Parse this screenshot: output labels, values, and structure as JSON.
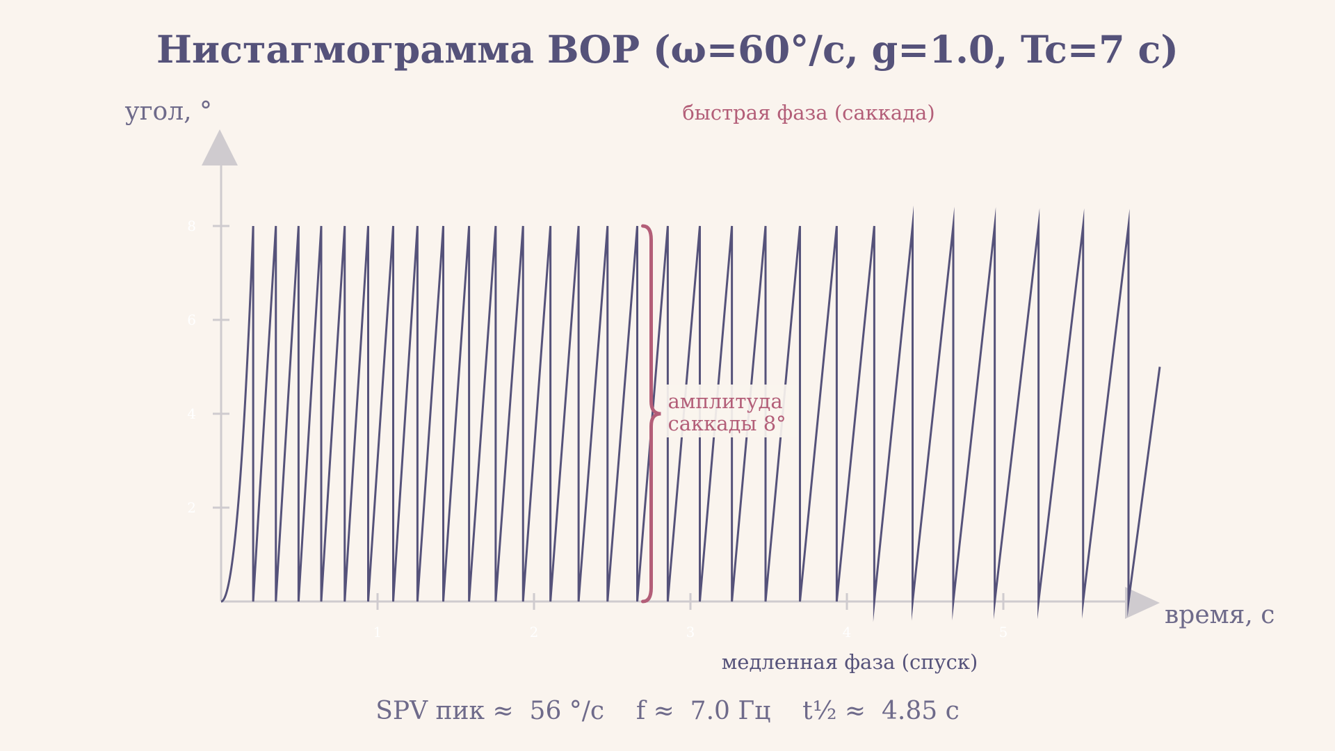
{
  "chart_data": {
    "type": "line",
    "title": "Нистагмограмма ВОР (ω=60°/с, g=1.0, Tc=7 с)",
    "xlabel": "время, с",
    "ylabel": "угол, °",
    "xlim": [
      0,
      5.9
    ],
    "ylim": [
      0,
      10
    ],
    "x_ticks": [
      1,
      2,
      3,
      4,
      5
    ],
    "y_ticks": [
      2,
      4,
      6,
      8
    ],
    "x_tick_labels": [
      "1",
      "2",
      "3",
      "4",
      "5"
    ],
    "y_tick_labels": [
      "2",
      "4",
      "6",
      "8"
    ],
    "grid": false,
    "series": [
      {
        "color": "#55527a",
        "x": [
          0,
          0.205,
          0.205,
          0.35,
          0.35,
          0.495,
          0.495,
          0.64,
          0.64,
          0.79,
          0.79,
          0.94,
          0.94,
          1.1,
          1.1,
          1.255,
          1.255,
          1.42,
          1.42,
          1.585,
          1.585,
          1.755,
          1.755,
          1.93,
          1.93,
          2.105,
          2.105,
          2.285,
          2.285,
          2.47,
          2.47,
          2.66,
          2.66,
          2.855,
          2.855,
          3.06,
          3.06,
          3.265,
          3.265,
          3.48,
          3.48,
          3.7,
          3.7,
          3.935,
          3.935,
          4.175,
          4.175,
          4.42,
          4.42,
          4.68,
          4.68,
          4.945,
          4.945,
          5.225,
          5.225,
          5.51,
          5.51,
          5.8,
          5.8,
          6.0
        ],
        "y": [
          0,
          8,
          0,
          8,
          0,
          8,
          0,
          8,
          0,
          8,
          0,
          8,
          0,
          8,
          0,
          8,
          0,
          8,
          0,
          8,
          0,
          8,
          0,
          8,
          0,
          8,
          0,
          8,
          0,
          8,
          0,
          8,
          0,
          8,
          0,
          8,
          0,
          8,
          0,
          8,
          0,
          8,
          0,
          8,
          0,
          8,
          0,
          8,
          0,
          8,
          0,
          8,
          0,
          8,
          0,
          8,
          0,
          8,
          0,
          5
        ]
      }
    ],
    "annotations": {
      "fast_phase": "быстрая фаза (саккада)",
      "slow_phase": "медленная фаза (спуск)",
      "amplitude_line1": "амплитуда",
      "amplitude_line2": "саккады 8°",
      "amplitude_value": 8,
      "amplitude_at_x": 2.66
    },
    "stats": "SPV пик ≈  56 °/с    f ≈  7.0 Гц    t½ ≈  4.85 с"
  },
  "colors": {
    "trace": "#55527a",
    "accent": "#b35e78",
    "axis": "#cfcbcf",
    "background": "#faf4ee"
  }
}
